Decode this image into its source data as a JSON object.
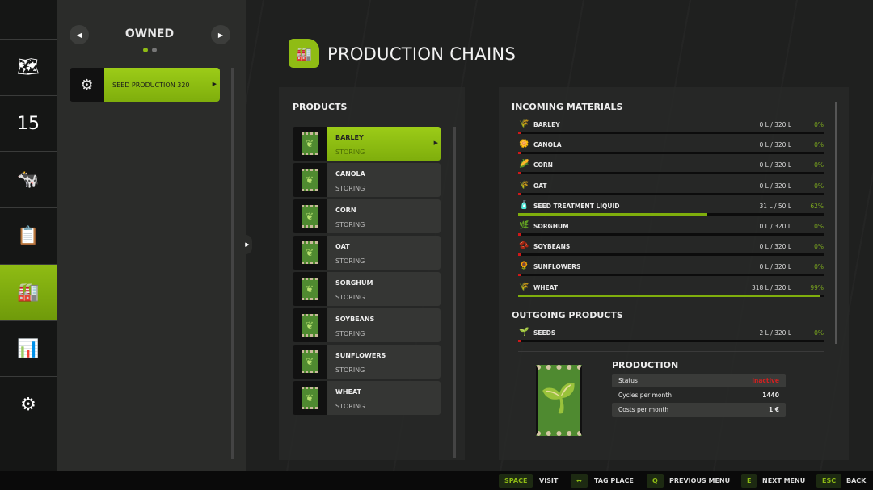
{
  "nav": {
    "items": [
      {
        "icon": "map-icon",
        "glyph": "🗺"
      },
      {
        "icon": "calendar-icon",
        "glyph": "15"
      },
      {
        "icon": "cow-icon",
        "glyph": "🐄"
      },
      {
        "icon": "contracts-icon",
        "glyph": "📋"
      },
      {
        "icon": "production-icon",
        "glyph": "🏭",
        "active": true
      },
      {
        "icon": "statistics-icon",
        "glyph": "📊"
      },
      {
        "icon": "settings-icon",
        "glyph": "⚙"
      }
    ]
  },
  "sidebar": {
    "title": "OWNED",
    "page": 1,
    "pages": 2,
    "items": [
      {
        "label": "SEED PRODUCTION 320"
      }
    ]
  },
  "header": {
    "title": "PRODUCTION CHAINS"
  },
  "products": {
    "heading": "PRODUCTS",
    "items": [
      {
        "name": "BARLEY",
        "status": "STORING",
        "selected": true
      },
      {
        "name": "CANOLA",
        "status": "STORING"
      },
      {
        "name": "CORN",
        "status": "STORING"
      },
      {
        "name": "OAT",
        "status": "STORING"
      },
      {
        "name": "SORGHUM",
        "status": "STORING"
      },
      {
        "name": "SOYBEANS",
        "status": "STORING"
      },
      {
        "name": "SUNFLOWERS",
        "status": "STORING"
      },
      {
        "name": "WHEAT",
        "status": "STORING"
      }
    ]
  },
  "incoming": {
    "heading": "INCOMING MATERIALS",
    "items": [
      {
        "name": "BARLEY",
        "qty": "0 L / 320 L",
        "pct": "0%",
        "fill": 0,
        "glyph": "🌾"
      },
      {
        "name": "CANOLA",
        "qty": "0 L / 320 L",
        "pct": "0%",
        "fill": 0,
        "glyph": "🌼"
      },
      {
        "name": "CORN",
        "qty": "0 L / 320 L",
        "pct": "0%",
        "fill": 0,
        "glyph": "🌽"
      },
      {
        "name": "OAT",
        "qty": "0 L / 320 L",
        "pct": "0%",
        "fill": 0,
        "glyph": "🌾"
      },
      {
        "name": "SEED TREATMENT LIQUID",
        "qty": "31 L / 50 L",
        "pct": "62%",
        "fill": 62,
        "glyph": "🧴"
      },
      {
        "name": "SORGHUM",
        "qty": "0 L / 320 L",
        "pct": "0%",
        "fill": 0,
        "glyph": "🌿"
      },
      {
        "name": "SOYBEANS",
        "qty": "0 L / 320 L",
        "pct": "0%",
        "fill": 0,
        "glyph": "🫘"
      },
      {
        "name": "SUNFLOWERS",
        "qty": "0 L / 320 L",
        "pct": "0%",
        "fill": 0,
        "glyph": "🌻"
      },
      {
        "name": "WHEAT",
        "qty": "318 L / 320 L",
        "pct": "99%",
        "fill": 99,
        "glyph": "🌾"
      }
    ]
  },
  "outgoing": {
    "heading": "OUTGOING PRODUCTS",
    "items": [
      {
        "name": "SEEDS",
        "qty": "2 L / 320 L",
        "pct": "0%",
        "fill": 0,
        "glyph": "🌱"
      }
    ]
  },
  "production": {
    "heading": "PRODUCTION",
    "rows": [
      {
        "label": "Status",
        "value": "Inactive",
        "color": "#d42020"
      },
      {
        "label": "Cycles per month",
        "value": "1440"
      },
      {
        "label": "Costs per month",
        "value": "1 €"
      }
    ]
  },
  "footer": {
    "actions": [
      {
        "key": "SPACE",
        "label": "VISIT"
      },
      {
        "key": "↔",
        "label": "TAG PLACE"
      },
      {
        "key": "Q",
        "label": "PREVIOUS MENU"
      },
      {
        "key": "E",
        "label": "NEXT MENU"
      },
      {
        "key": "ESC",
        "label": "BACK"
      }
    ]
  },
  "colors": {
    "accent": "#8fbc14",
    "inactive": "#d42020"
  }
}
